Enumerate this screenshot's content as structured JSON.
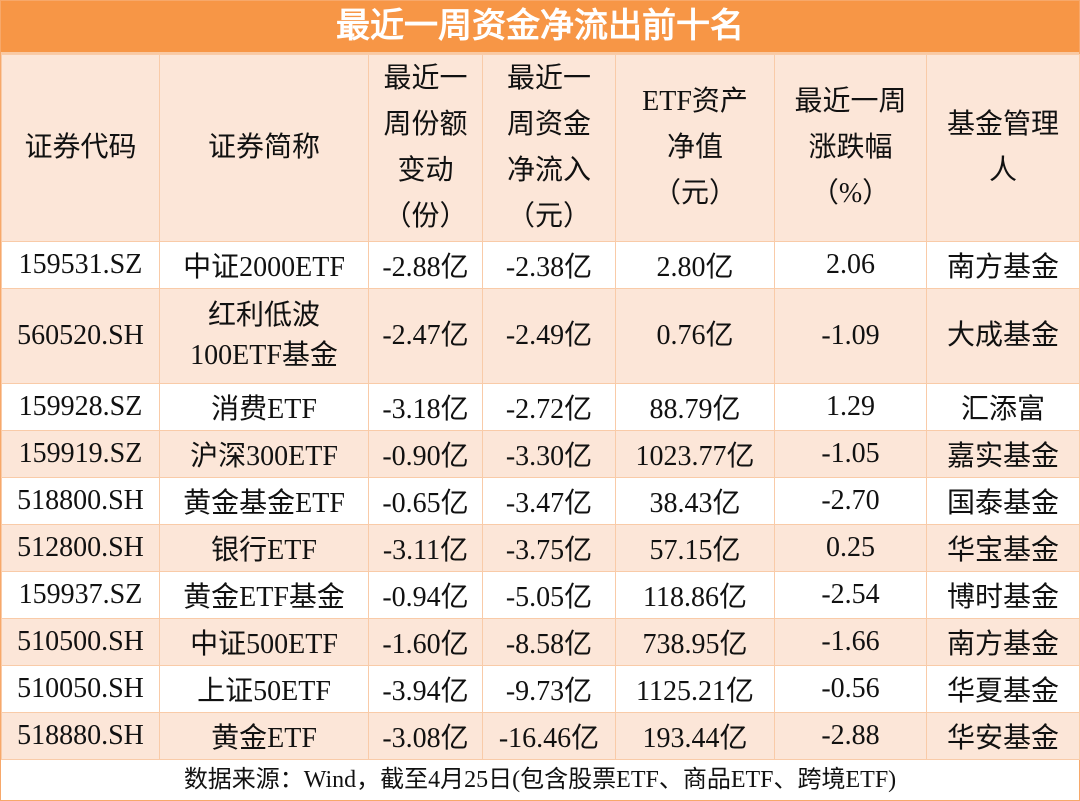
{
  "title": "最近一周资金净流出前十名",
  "headers": [
    "证券代码",
    "证券简称",
    "最近一\n周份额\n变动\n（份）",
    "最近一\n周资金\n净流入\n（元）",
    "ETF资产\n净值\n（元）",
    "最近一周\n涨跌幅\n（%）",
    "基金管理\n人"
  ],
  "rows": [
    [
      "159531.SZ",
      "中证2000ETF",
      "-2.88亿",
      "-2.38亿",
      "2.80亿",
      "2.06",
      "南方基金"
    ],
    [
      "560520.SH",
      "红利低波100ETF基金",
      "-2.47亿",
      "-2.49亿",
      "0.76亿",
      "-1.09",
      "大成基金"
    ],
    [
      "159928.SZ",
      "消费ETF",
      "-3.18亿",
      "-2.72亿",
      "88.79亿",
      "1.29",
      "汇添富"
    ],
    [
      "159919.SZ",
      "沪深300ETF",
      "-0.90亿",
      "-3.30亿",
      "1023.77亿",
      "-1.05",
      "嘉实基金"
    ],
    [
      "518800.SH",
      "黄金基金ETF",
      "-0.65亿",
      "-3.47亿",
      "38.43亿",
      "-2.70",
      "国泰基金"
    ],
    [
      "512800.SH",
      "银行ETF",
      "-3.11亿",
      "-3.75亿",
      "57.15亿",
      "0.25",
      "华宝基金"
    ],
    [
      "159937.SZ",
      "黄金ETF基金",
      "-0.94亿",
      "-5.05亿",
      "118.86亿",
      "-2.54",
      "博时基金"
    ],
    [
      "510500.SH",
      "中证500ETF",
      "-1.60亿",
      "-8.58亿",
      "738.95亿",
      "-1.66",
      "南方基金"
    ],
    [
      "510050.SH",
      "上证50ETF",
      "-3.94亿",
      "-9.73亿",
      "1125.21亿",
      "-0.56",
      "华夏基金"
    ],
    [
      "518880.SH",
      "黄金ETF",
      "-3.08亿",
      "-16.46亿",
      "193.44亿",
      "-2.88",
      "华安基金"
    ]
  ],
  "footer": "数据来源：Wind，截至4月25日(包含股票ETF、商品ETF、跨境ETF)",
  "colors": {
    "title_bg": "#f79646",
    "alt_row": "#fce6d8",
    "border": "#f9cba8"
  }
}
